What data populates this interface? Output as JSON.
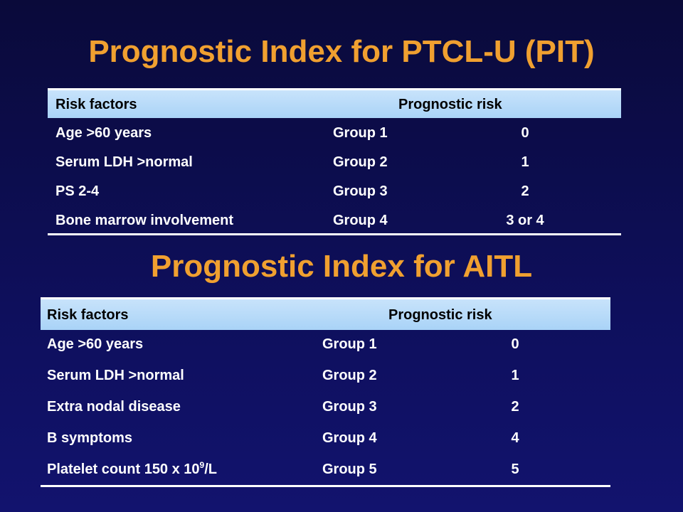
{
  "titles": {
    "pit": "Prognostic Index for PTCL-U (PIT)",
    "aitl": "Prognostic Index for AITL"
  },
  "tables": [
    {
      "header": {
        "risk_factors": "Risk factors",
        "prognostic_risk": "Prognostic risk"
      },
      "rows": [
        {
          "factor": "Age >60 years",
          "group": "Group 1",
          "score": "0"
        },
        {
          "factor": "Serum LDH >normal",
          "group": "Group 2",
          "score": "1"
        },
        {
          "factor": "PS 2-4",
          "group": "Group 3",
          "score": "2"
        },
        {
          "factor": "Bone marrow involvement",
          "group": "Group 4",
          "score": "3 or 4"
        }
      ]
    },
    {
      "header": {
        "risk_factors": "Risk factors",
        "prognostic_risk": "Prognostic risk"
      },
      "rows": [
        {
          "factor": "Age >60 years",
          "group": "Group 1",
          "score": "0"
        },
        {
          "factor": "Serum LDH >normal",
          "group": "Group 2",
          "score": "1"
        },
        {
          "factor": "Extra nodal disease",
          "group": "Group 3",
          "score": "2"
        },
        {
          "factor": "B symptoms",
          "group": "Group 4",
          "score": "4"
        },
        {
          "factor_prefix": "Platelet count  150 x 10",
          "factor_sup": "9",
          "factor_suffix": "/L",
          "group": "Group 5",
          "score": "5"
        }
      ]
    }
  ],
  "colors": {
    "title": "#f0a030",
    "header_bg": "#b3d9f8",
    "background": "#0e0f5c"
  }
}
